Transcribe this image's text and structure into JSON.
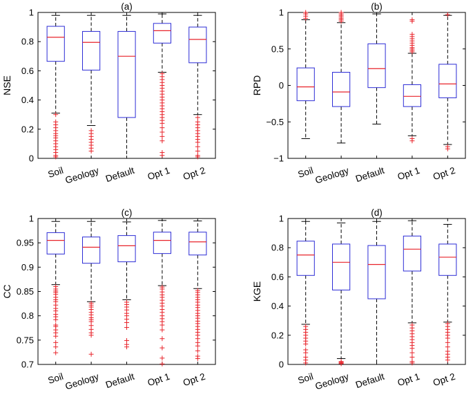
{
  "colors": {
    "box": "#2b2bd6",
    "median": "#e8232a",
    "outlier": "#e8232a",
    "whisker": "#000000",
    "axes": "#000000"
  },
  "chart_data": [
    {
      "type": "box",
      "panel": "(a)",
      "title": "(a)",
      "ylabel": "NSE",
      "categories": [
        "Soil",
        "Geology",
        "Default",
        "Opt 1",
        "Opt 2"
      ],
      "ylim": [
        0,
        1
      ],
      "yticks": [
        0,
        0.2,
        0.4,
        0.6,
        0.8,
        1
      ],
      "ytick_labels": [
        "0",
        "0.2",
        "0.4",
        "0.6",
        "0.8",
        "1"
      ],
      "boxes": [
        {
          "q1": 0.665,
          "median": 0.83,
          "q3": 0.905,
          "whisker_low": 0.31,
          "whisker_high": 0.98,
          "outliers": [
            0.3,
            0.25,
            0.23,
            0.21,
            0.19,
            0.17,
            0.155,
            0.14,
            0.12,
            0.1,
            0.08,
            0.06,
            0.04,
            0.02,
            0.01
          ]
        },
        {
          "q1": 0.605,
          "median": 0.795,
          "q3": 0.87,
          "whisker_low": 0.225,
          "whisker_high": 0.98,
          "outliers": [
            0.19,
            0.17,
            0.15,
            0.13,
            0.11,
            0.09,
            0.07,
            0.05
          ]
        },
        {
          "q1": 0.28,
          "median": 0.7,
          "q3": 0.87,
          "whisker_low": 0.0,
          "whisker_high": 0.98,
          "outliers": []
        },
        {
          "q1": 0.79,
          "median": 0.875,
          "q3": 0.925,
          "whisker_low": 0.59,
          "whisker_high": 0.99,
          "outliers": [
            0.58,
            0.56,
            0.54,
            0.52,
            0.5,
            0.48,
            0.46,
            0.44,
            0.42,
            0.4,
            0.38,
            0.36,
            0.34,
            0.32,
            0.3,
            0.28,
            0.26,
            0.24,
            0.21,
            0.18,
            0.15,
            0.12,
            0.04,
            0.02
          ]
        },
        {
          "q1": 0.655,
          "median": 0.815,
          "q3": 0.9,
          "whisker_low": 0.3,
          "whisker_high": 0.98,
          "outliers": [
            0.28,
            0.25,
            0.23,
            0.21,
            0.19,
            0.17,
            0.15,
            0.13,
            0.11,
            0.08,
            0.05,
            0.02,
            0.01
          ]
        }
      ]
    },
    {
      "type": "box",
      "panel": "(b)",
      "title": "(b)",
      "ylabel": "RPD",
      "categories": [
        "Soil",
        "Geology",
        "Default",
        "Opt 1",
        "Opt 2"
      ],
      "ylim": [
        -1,
        1
      ],
      "yticks": [
        -1,
        -0.5,
        0,
        0.5,
        1
      ],
      "ytick_labels": [
        "−1",
        "−0.5",
        "0",
        "0.5",
        "1"
      ],
      "boxes": [
        {
          "q1": -0.21,
          "median": -0.02,
          "q3": 0.24,
          "whisker_low": -0.73,
          "whisker_high": 0.9,
          "outliers": [
            0.92,
            0.95,
            0.98,
            1.0
          ]
        },
        {
          "q1": -0.29,
          "median": -0.09,
          "q3": 0.18,
          "whisker_low": -0.79,
          "whisker_high": 0.86,
          "outliers": [
            0.88,
            0.9,
            0.92,
            0.94,
            0.96,
            0.98,
            1.0
          ]
        },
        {
          "q1": -0.03,
          "median": 0.23,
          "q3": 0.57,
          "whisker_low": -0.53,
          "whisker_high": 0.98,
          "outliers": []
        },
        {
          "q1": -0.29,
          "median": -0.15,
          "q3": 0.01,
          "whisker_low": -0.69,
          "whisker_high": 0.44,
          "outliers": [
            0.46,
            0.48,
            0.5,
            0.52,
            0.55,
            0.58,
            0.61,
            0.64,
            0.67,
            0.7,
            0.88,
            0.9,
            -0.73,
            -0.76
          ]
        },
        {
          "q1": -0.17,
          "median": 0.02,
          "q3": 0.29,
          "whisker_low": -0.81,
          "whisker_high": 0.96,
          "outliers": [
            0.97,
            -0.84,
            -0.87
          ]
        }
      ]
    },
    {
      "type": "box",
      "panel": "(c)",
      "title": "(c)",
      "ylabel": "CC",
      "categories": [
        "Soil",
        "Geology",
        "Default",
        "Opt 1",
        "Opt 2"
      ],
      "ylim": [
        0.7,
        1
      ],
      "yticks": [
        0.7,
        0.75,
        0.8,
        0.85,
        0.9,
        0.95,
        1
      ],
      "ytick_labels": [
        "0.7",
        "0.75",
        "0.8",
        "0.85",
        "0.9",
        "0.95",
        "1"
      ],
      "boxes": [
        {
          "q1": 0.927,
          "median": 0.955,
          "q3": 0.971,
          "whisker_low": 0.864,
          "whisker_high": 0.994,
          "outliers": [
            0.86,
            0.855,
            0.851,
            0.848,
            0.844,
            0.838,
            0.833,
            0.829,
            0.822,
            0.815,
            0.81,
            0.803,
            0.798,
            0.792,
            0.781,
            0.778,
            0.771,
            0.765,
            0.758,
            0.745,
            0.736,
            0.724
          ]
        },
        {
          "q1": 0.908,
          "median": 0.941,
          "q3": 0.962,
          "whisker_low": 0.829,
          "whisker_high": 0.994,
          "outliers": [
            0.826,
            0.822,
            0.818,
            0.813,
            0.807,
            0.802,
            0.796,
            0.792,
            0.788,
            0.78,
            0.772,
            0.765,
            0.76,
            0.721
          ]
        },
        {
          "q1": 0.911,
          "median": 0.944,
          "q3": 0.965,
          "whisker_low": 0.833,
          "whisker_high": 0.993,
          "outliers": [
            0.828,
            0.823,
            0.818,
            0.812,
            0.805,
            0.8,
            0.793,
            0.786,
            0.776,
            0.749,
            0.741,
            0.736
          ]
        },
        {
          "q1": 0.928,
          "median": 0.955,
          "q3": 0.972,
          "whisker_low": 0.862,
          "whisker_high": 0.996,
          "outliers": [
            0.859,
            0.855,
            0.849,
            0.843,
            0.838,
            0.832,
            0.826,
            0.82,
            0.813,
            0.807,
            0.8,
            0.794,
            0.788,
            0.781,
            0.771,
            0.753,
            0.734,
            0.713,
            0.701
          ]
        },
        {
          "q1": 0.925,
          "median": 0.952,
          "q3": 0.972,
          "whisker_low": 0.856,
          "whisker_high": 0.995,
          "outliers": [
            0.852,
            0.848,
            0.843,
            0.838,
            0.833,
            0.828,
            0.822,
            0.817,
            0.811,
            0.805,
            0.8,
            0.795,
            0.789,
            0.784,
            0.778,
            0.772,
            0.766,
            0.76,
            0.753,
            0.745,
            0.738,
            0.728,
            0.717,
            0.712
          ]
        }
      ]
    },
    {
      "type": "box",
      "panel": "(d)",
      "title": "(d)",
      "ylabel": "KGE",
      "categories": [
        "Soil",
        "Geology",
        "Default",
        "Opt 1",
        "Opt 2"
      ],
      "ylim": [
        0,
        1
      ],
      "yticks": [
        0,
        0.2,
        0.4,
        0.6,
        0.8,
        1
      ],
      "ytick_labels": [
        "0",
        "0.2",
        "0.4",
        "0.6",
        "0.8",
        "1"
      ],
      "boxes": [
        {
          "q1": 0.61,
          "median": 0.75,
          "q3": 0.845,
          "whisker_low": 0.275,
          "whisker_high": 0.98,
          "outliers": [
            0.26,
            0.24,
            0.22,
            0.2,
            0.18,
            0.16,
            0.14,
            0.1,
            0.08,
            0.05,
            0.03,
            0.01
          ]
        },
        {
          "q1": 0.51,
          "median": 0.7,
          "q3": 0.825,
          "whisker_low": 0.04,
          "whisker_high": 0.97,
          "outliers": [
            0.02,
            0.015,
            0.01,
            0.005
          ]
        },
        {
          "q1": 0.45,
          "median": 0.685,
          "q3": 0.815,
          "whisker_low": 0.0,
          "whisker_high": 0.98,
          "outliers": []
        },
        {
          "q1": 0.64,
          "median": 0.79,
          "q3": 0.88,
          "whisker_low": 0.285,
          "whisker_high": 0.985,
          "outliers": [
            0.27,
            0.25,
            0.23,
            0.21,
            0.19,
            0.17,
            0.15,
            0.13,
            0.11,
            0.08,
            0.05,
            0.02,
            0.01
          ]
        },
        {
          "q1": 0.61,
          "median": 0.735,
          "q3": 0.825,
          "whisker_low": 0.29,
          "whisker_high": 0.96,
          "outliers": [
            0.28,
            0.26,
            0.24,
            0.22,
            0.2,
            0.18,
            0.15,
            0.12,
            0.09,
            0.07,
            0.05,
            0.03
          ]
        }
      ]
    }
  ]
}
